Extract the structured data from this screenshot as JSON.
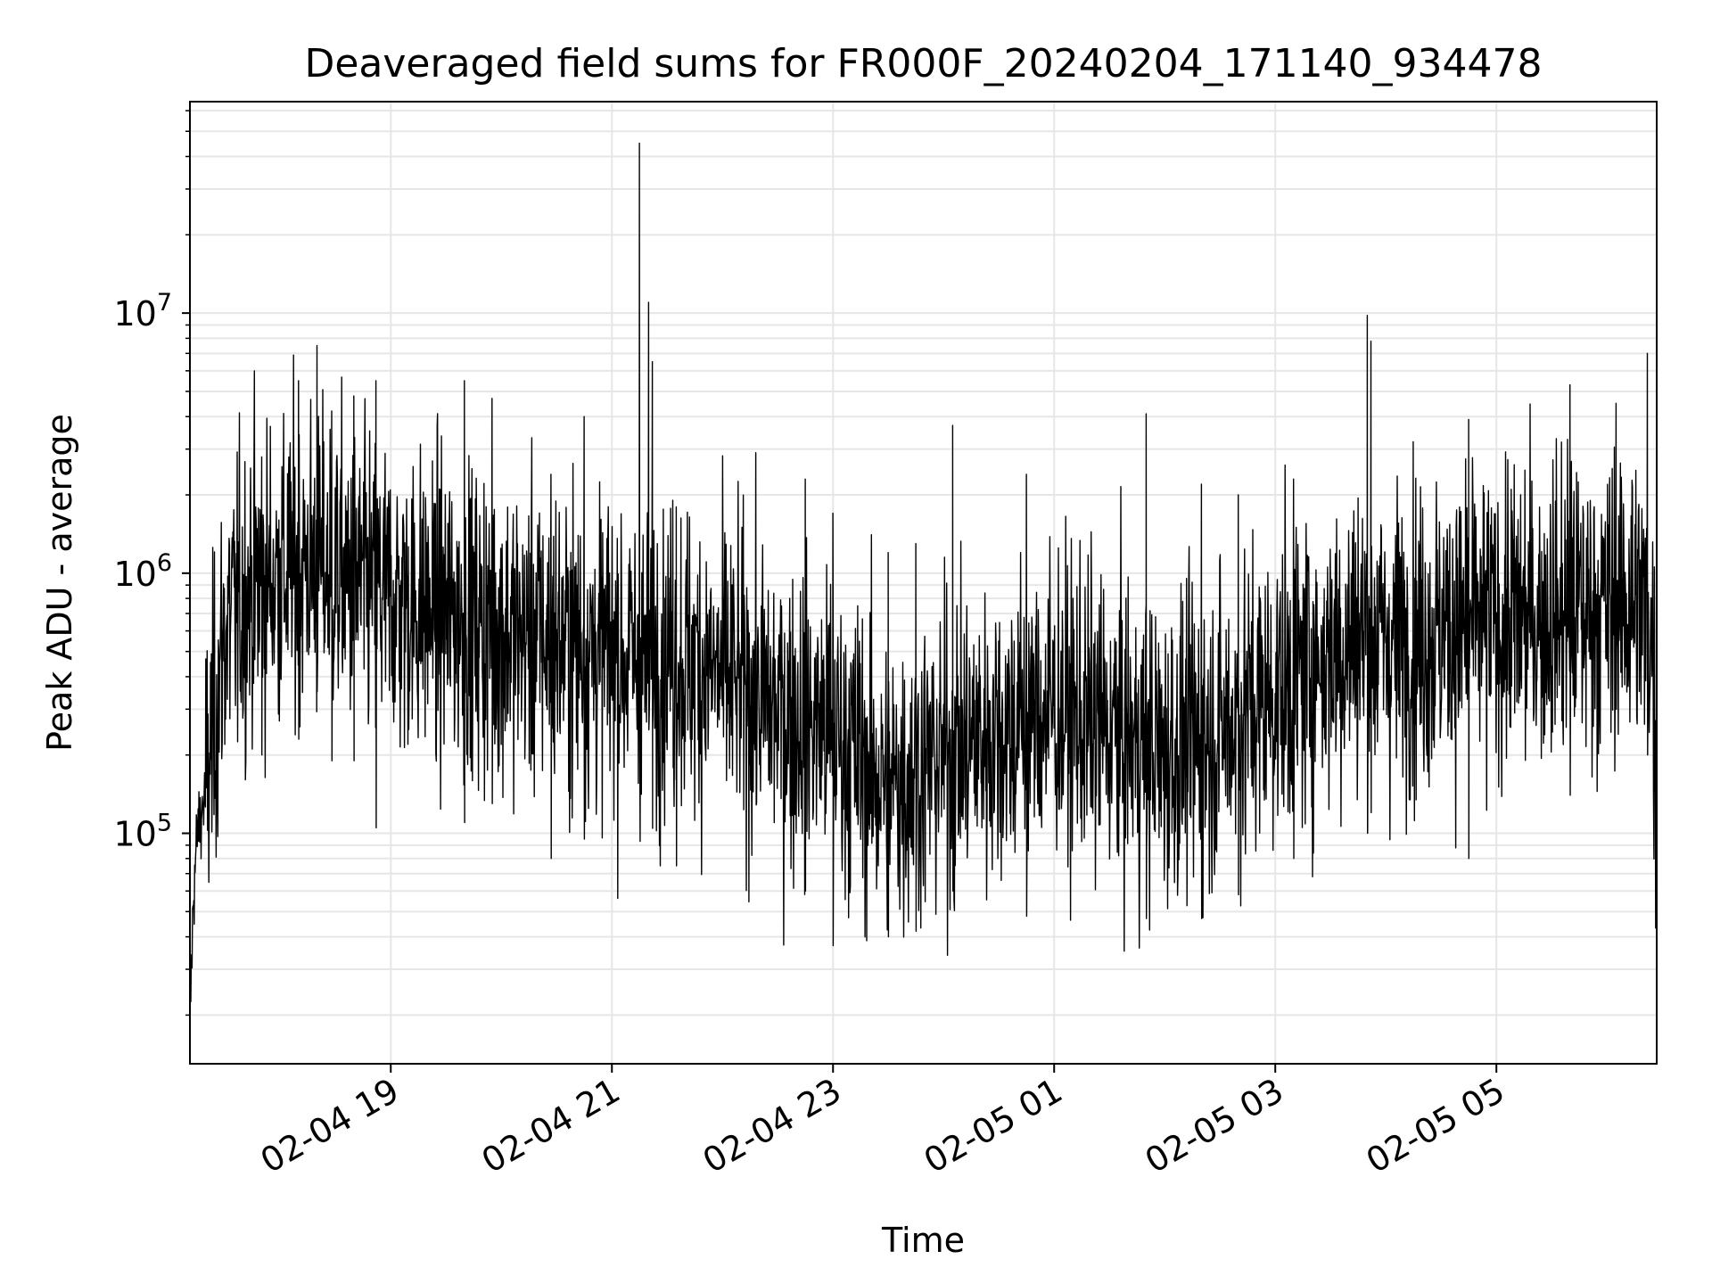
{
  "chart_data": {
    "type": "line",
    "title": "Deaveraged field sums for FR000F_20240204_171140_934478",
    "xlabel": "Time",
    "ylabel": "Peak ADU - average",
    "yscale": "log",
    "xlim": [
      "2024-02-04 17:11",
      "2024-02-05 06:27"
    ],
    "ylim": [
      13000,
      65000000
    ],
    "grid": true,
    "x_ticks": [
      {
        "value": "2024-02-04 19:00",
        "label": "02-04 19"
      },
      {
        "value": "2024-02-04 21:00",
        "label": "02-04 21"
      },
      {
        "value": "2024-02-04 23:00",
        "label": "02-04 23"
      },
      {
        "value": "2024-02-05 01:00",
        "label": "02-05 01"
      },
      {
        "value": "2024-02-05 03:00",
        "label": "02-05 03"
      },
      {
        "value": "2024-02-05 05:00",
        "label": "02-05 05"
      }
    ],
    "y_ticks": [
      {
        "value": 100000,
        "base": "10",
        "exp": "5"
      },
      {
        "value": 1000000,
        "base": "10",
        "exp": "6"
      },
      {
        "value": 10000000,
        "base": "10",
        "exp": "7"
      }
    ],
    "series": [
      {
        "color": "#000000",
        "x": [
          "2024-02-04 17:11",
          "2024-02-04 17:13",
          "2024-02-04 17:15",
          "2024-02-04 17:20",
          "2024-02-04 17:30",
          "2024-02-04 17:45",
          "2024-02-04 18:00",
          "2024-02-04 18:15",
          "2024-02-04 18:30",
          "2024-02-04 18:45",
          "2024-02-04 19:00",
          "2024-02-04 19:30",
          "2024-02-04 20:00",
          "2024-02-04 20:30",
          "2024-02-04 21:00",
          "2024-02-04 21:18",
          "2024-02-04 21:30",
          "2024-02-04 22:00",
          "2024-02-04 22:30",
          "2024-02-04 23:00",
          "2024-02-04 23:30",
          "2024-02-05 00:00",
          "2024-02-05 00:30",
          "2024-02-05 01:00",
          "2024-02-05 01:30",
          "2024-02-05 02:00",
          "2024-02-05 02:30",
          "2024-02-05 03:00",
          "2024-02-05 03:30",
          "2024-02-05 03:50",
          "2024-02-05 04:00",
          "2024-02-05 04:30",
          "2024-02-05 05:00",
          "2024-02-05 05:30",
          "2024-02-05 06:00",
          "2024-02-05 06:15",
          "2024-02-05 06:25",
          "2024-02-05 06:27"
        ],
        "values": [
          18000,
          60000,
          100000,
          150000,
          600000,
          900000,
          1000000,
          1100000,
          1000000,
          900000,
          800000,
          700000,
          600000,
          550000,
          500000,
          450000,
          500000,
          400000,
          300000,
          250000,
          150000,
          200000,
          250000,
          300000,
          250000,
          200000,
          250000,
          350000,
          500000,
          600000,
          550000,
          600000,
          650000,
          700000,
          750000,
          800000,
          600000,
          75000
        ],
        "extremes": [
          {
            "x": "2024-02-04 17:50",
            "high": 2800000,
            "low": 200000
          },
          {
            "x": "2024-02-04 18:10",
            "high": 5500000,
            "low": 230000
          },
          {
            "x": "2024-02-04 18:20",
            "high": 7500000,
            "low": 350000
          },
          {
            "x": "2024-02-04 18:28",
            "high": 4200000,
            "low": 190000
          },
          {
            "x": "2024-02-04 18:40",
            "high": 4800000,
            "low": 190000
          },
          {
            "x": "2024-02-04 18:52",
            "high": 5500000,
            "low": 105000
          },
          {
            "x": "2024-02-04 19:40",
            "high": 5500000,
            "low": 110000
          },
          {
            "x": "2024-02-04 19:55",
            "high": 4700000,
            "low": 130000
          },
          {
            "x": "2024-02-04 20:27",
            "high": 2400000,
            "low": 80000
          },
          {
            "x": "2024-02-04 20:45",
            "high": 4000000,
            "low": 95000
          },
          {
            "x": "2024-02-04 21:15",
            "high": 45000000,
            "low": 300000
          },
          {
            "x": "2024-02-04 21:20",
            "high": 11000000,
            "low": 250000
          },
          {
            "x": "2024-02-04 21:22",
            "high": 6500000,
            "low": 250000
          },
          {
            "x": "2024-02-04 21:35",
            "high": 1800000,
            "low": 75000
          },
          {
            "x": "2024-02-04 22:45",
            "high": 2300000,
            "low": 60000
          },
          {
            "x": "2024-02-04 23:00",
            "high": 1700000,
            "low": 37000
          },
          {
            "x": "2024-02-04 23:30",
            "high": 1200000,
            "low": 40000
          },
          {
            "x": "2024-02-04 23:45",
            "high": 1300000,
            "low": 42000
          },
          {
            "x": "2024-02-05 00:05",
            "high": 3700000,
            "low": 60000
          },
          {
            "x": "2024-02-05 00:45",
            "high": 2400000,
            "low": 48000
          },
          {
            "x": "2024-02-05 01:50",
            "high": 4100000,
            "low": 47000
          },
          {
            "x": "2024-02-05 02:20",
            "high": 2200000,
            "low": 47000
          },
          {
            "x": "2024-02-05 02:40",
            "high": 2000000,
            "low": 58000
          },
          {
            "x": "2024-02-05 03:10",
            "high": 2300000,
            "low": 80000
          },
          {
            "x": "2024-02-05 03:50",
            "high": 9800000,
            "low": 100000
          },
          {
            "x": "2024-02-05 03:52",
            "high": 7800000,
            "low": 120000
          },
          {
            "x": "2024-02-05 04:45",
            "high": 3900000,
            "low": 80000
          },
          {
            "x": "2024-02-05 05:40",
            "high": 5300000,
            "low": 140000
          },
          {
            "x": "2024-02-05 06:05",
            "high": 4500000,
            "low": 300000
          },
          {
            "x": "2024-02-05 06:22",
            "high": 7000000,
            "low": 200000
          }
        ]
      }
    ]
  }
}
